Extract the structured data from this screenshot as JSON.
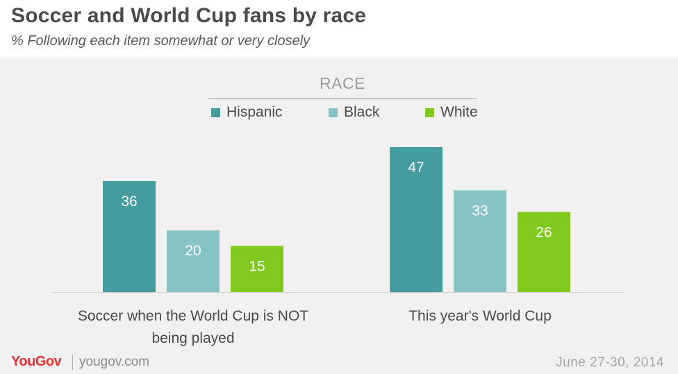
{
  "header": {
    "title": "Soccer and World Cup fans by race",
    "subtitle": "% Following each item somewhat or very closely"
  },
  "legend": {
    "title": "RACE"
  },
  "colors": {
    "Hispanic": "#459c9f",
    "Black": "#87c2c5",
    "White": "#82c91d",
    "label_text": "#ffffff",
    "panel_bg": "#f1f1f1"
  },
  "chart_data": {
    "type": "bar",
    "categories": [
      "Soccer when the World Cup is NOT being played",
      "This year's World Cup"
    ],
    "series": [
      {
        "name": "Hispanic",
        "values": [
          36,
          47
        ]
      },
      {
        "name": "Black",
        "values": [
          20,
          33
        ]
      },
      {
        "name": "White",
        "values": [
          15,
          26
        ]
      }
    ],
    "title": "Soccer and World Cup fans by race",
    "subtitle": "% Following each item somewhat or very closely",
    "legend_title": "RACE",
    "legend_position": "top-center",
    "ylim": [
      0,
      47
    ],
    "grid": false
  },
  "footer": {
    "brand": "YouGov",
    "url": "yougov.com",
    "date": "June 27-30, 2014"
  }
}
